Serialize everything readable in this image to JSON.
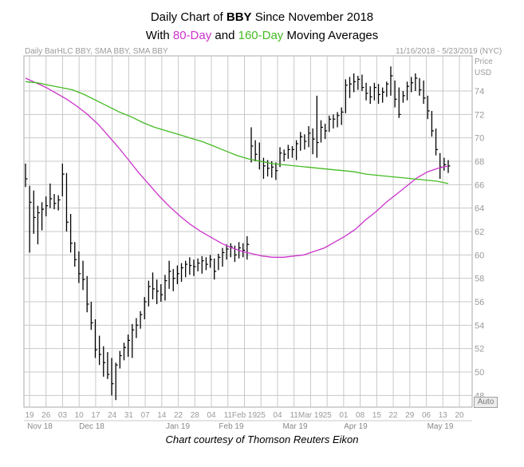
{
  "title": {
    "line1_prefix": "Daily Chart of ",
    "ticker": "BBY",
    "line1_suffix": " Since November 2018",
    "line2_prefix": "With ",
    "ma80_label": "80-Day",
    "line2_middle": " and ",
    "ma160_label": "160-Day",
    "line2_suffix": " Moving Averages"
  },
  "header_left": "Daily BarHLC BBY, SMA BBY, SMA BBY",
  "header_right": "11/16/2018 - 5/23/2019 (NYC)",
  "price_label": "Price",
  "currency_label": "USD",
  "auto_label": "Auto",
  "credit": "Chart courtesy of Thomson Reuters Eikon",
  "colors": {
    "bars": "#000000",
    "sma80": "#cc33cc",
    "sma160": "#44bb22",
    "grid": "#c8c8c8",
    "axis_text": "#9a9a9a"
  },
  "chart_data": {
    "type": "bar",
    "subtype": "HLC",
    "ylim": [
      47,
      77
    ],
    "y_ticks": [
      48,
      50,
      52,
      54,
      56,
      58,
      60,
      62,
      64,
      66,
      68,
      70,
      72,
      74
    ],
    "x_day_labels": [
      "19",
      "26",
      "03",
      "10",
      "17",
      "24",
      "31",
      "07",
      "14",
      "22",
      "28",
      "04",
      "11",
      "Feb 19",
      "25",
      "04",
      "11",
      "Mar 19",
      "25",
      "01",
      "08",
      "15",
      "22",
      "29",
      "06",
      "13",
      "20"
    ],
    "x_month_labels": [
      "Nov 18",
      "Dec 18",
      "Jan 19",
      "Feb 19",
      "Mar 19",
      "Apr 19",
      "May 19"
    ],
    "grid": true,
    "bars": [
      {
        "h": 67.8,
        "l": 65.8,
        "c": 66.5
      },
      {
        "h": 65.9,
        "l": 60.2,
        "c": 64.5
      },
      {
        "h": 65.5,
        "l": 61.8,
        "c": 63.2
      },
      {
        "h": 64.2,
        "l": 60.9,
        "c": 63.6
      },
      {
        "h": 64.5,
        "l": 62.1,
        "c": 63.9
      },
      {
        "h": 65.0,
        "l": 63.3,
        "c": 64.2
      },
      {
        "h": 66.1,
        "l": 64.0,
        "c": 64.8
      },
      {
        "h": 65.2,
        "l": 63.9,
        "c": 64.4
      },
      {
        "h": 65.1,
        "l": 63.8,
        "c": 64.7
      },
      {
        "h": 67.8,
        "l": 65.0,
        "c": 66.9
      },
      {
        "h": 67.0,
        "l": 62.0,
        "c": 62.8
      },
      {
        "h": 63.5,
        "l": 60.2,
        "c": 61.0
      },
      {
        "h": 61.1,
        "l": 59.0,
        "c": 59.6
      },
      {
        "h": 60.3,
        "l": 57.6,
        "c": 58.4
      },
      {
        "h": 59.5,
        "l": 57.0,
        "c": 57.9
      },
      {
        "h": 58.2,
        "l": 55.1,
        "c": 55.8
      },
      {
        "h": 56.0,
        "l": 53.6,
        "c": 54.2
      },
      {
        "h": 54.5,
        "l": 51.2,
        "c": 51.9
      },
      {
        "h": 53.1,
        "l": 50.6,
        "c": 51.5
      },
      {
        "h": 52.2,
        "l": 49.6,
        "c": 50.8
      },
      {
        "h": 51.7,
        "l": 49.4,
        "c": 49.8
      },
      {
        "h": 51.2,
        "l": 48.0,
        "c": 49.0
      },
      {
        "h": 50.8,
        "l": 47.6,
        "c": 50.6
      },
      {
        "h": 51.8,
        "l": 50.3,
        "c": 51.4
      },
      {
        "h": 52.5,
        "l": 51.0,
        "c": 52.1
      },
      {
        "h": 53.2,
        "l": 51.3,
        "c": 52.7
      },
      {
        "h": 54.1,
        "l": 51.2,
        "c": 53.6
      },
      {
        "h": 54.6,
        "l": 52.9,
        "c": 54.0
      },
      {
        "h": 55.2,
        "l": 53.7,
        "c": 54.9
      },
      {
        "h": 56.4,
        "l": 54.5,
        "c": 56.0
      },
      {
        "h": 57.8,
        "l": 55.6,
        "c": 57.3
      },
      {
        "h": 58.5,
        "l": 56.2,
        "c": 57.1
      },
      {
        "h": 57.9,
        "l": 55.8,
        "c": 56.9
      },
      {
        "h": 57.5,
        "l": 56.0,
        "c": 56.6
      },
      {
        "h": 58.3,
        "l": 56.1,
        "c": 57.8
      },
      {
        "h": 59.5,
        "l": 57.1,
        "c": 58.6
      },
      {
        "h": 58.8,
        "l": 56.9,
        "c": 58.0
      },
      {
        "h": 59.1,
        "l": 57.5,
        "c": 58.4
      },
      {
        "h": 59.3,
        "l": 57.7,
        "c": 58.9
      },
      {
        "h": 59.5,
        "l": 58.1,
        "c": 59.2
      },
      {
        "h": 59.8,
        "l": 58.3,
        "c": 59.1
      },
      {
        "h": 59.6,
        "l": 58.2,
        "c": 59.0
      },
      {
        "h": 59.7,
        "l": 58.6,
        "c": 59.3
      },
      {
        "h": 59.9,
        "l": 58.4,
        "c": 59.5
      },
      {
        "h": 59.8,
        "l": 58.7,
        "c": 59.2
      },
      {
        "h": 60.0,
        "l": 58.9,
        "c": 59.6
      },
      {
        "h": 59.7,
        "l": 57.9,
        "c": 58.6
      },
      {
        "h": 60.1,
        "l": 58.7,
        "c": 59.8
      },
      {
        "h": 60.6,
        "l": 59.0,
        "c": 60.2
      },
      {
        "h": 60.9,
        "l": 59.6,
        "c": 60.5
      },
      {
        "h": 61.0,
        "l": 59.8,
        "c": 60.7
      },
      {
        "h": 60.8,
        "l": 59.4,
        "c": 60.0
      },
      {
        "h": 61.1,
        "l": 59.7,
        "c": 60.6
      },
      {
        "h": 61.0,
        "l": 59.8,
        "c": 60.4
      },
      {
        "h": 61.6,
        "l": 59.6,
        "c": 60.9
      },
      {
        "h": 70.9,
        "l": 67.9,
        "c": 69.3
      },
      {
        "h": 69.8,
        "l": 68.0,
        "c": 68.6
      },
      {
        "h": 69.6,
        "l": 67.3,
        "c": 68.0
      },
      {
        "h": 68.3,
        "l": 66.5,
        "c": 67.6
      },
      {
        "h": 68.1,
        "l": 66.7,
        "c": 67.4
      },
      {
        "h": 68.0,
        "l": 66.6,
        "c": 67.5
      },
      {
        "h": 67.9,
        "l": 66.4,
        "c": 67.2
      },
      {
        "h": 69.2,
        "l": 67.5,
        "c": 68.7
      },
      {
        "h": 69.0,
        "l": 68.0,
        "c": 68.6
      },
      {
        "h": 69.4,
        "l": 68.2,
        "c": 69.0
      },
      {
        "h": 69.3,
        "l": 68.3,
        "c": 69.0
      },
      {
        "h": 69.8,
        "l": 68.1,
        "c": 69.5
      },
      {
        "h": 70.5,
        "l": 68.9,
        "c": 70.1
      },
      {
        "h": 70.3,
        "l": 69.0,
        "c": 69.7
      },
      {
        "h": 71.0,
        "l": 69.2,
        "c": 70.4
      },
      {
        "h": 70.8,
        "l": 68.6,
        "c": 69.9
      },
      {
        "h": 73.6,
        "l": 68.3,
        "c": 69.6
      },
      {
        "h": 71.5,
        "l": 69.6,
        "c": 70.9
      },
      {
        "h": 71.2,
        "l": 69.9,
        "c": 70.6
      },
      {
        "h": 71.9,
        "l": 70.5,
        "c": 71.6
      },
      {
        "h": 72.0,
        "l": 70.8,
        "c": 71.6
      },
      {
        "h": 72.2,
        "l": 70.9,
        "c": 71.9
      },
      {
        "h": 72.6,
        "l": 71.1,
        "c": 72.2
      },
      {
        "h": 75.0,
        "l": 72.1,
        "c": 74.5
      },
      {
        "h": 75.2,
        "l": 73.4,
        "c": 74.6
      },
      {
        "h": 75.5,
        "l": 73.9,
        "c": 74.8
      },
      {
        "h": 75.3,
        "l": 74.1,
        "c": 75.0
      },
      {
        "h": 75.4,
        "l": 74.0,
        "c": 74.3
      },
      {
        "h": 74.7,
        "l": 73.2,
        "c": 73.8
      },
      {
        "h": 74.4,
        "l": 72.9,
        "c": 73.5
      },
      {
        "h": 74.7,
        "l": 73.2,
        "c": 74.3
      },
      {
        "h": 74.6,
        "l": 72.9,
        "c": 73.7
      },
      {
        "h": 74.3,
        "l": 73.0,
        "c": 73.9
      },
      {
        "h": 74.8,
        "l": 73.5,
        "c": 74.6
      },
      {
        "h": 76.1,
        "l": 73.6,
        "c": 75.3
      },
      {
        "h": 74.9,
        "l": 72.6,
        "c": 73.3
      },
      {
        "h": 74.3,
        "l": 71.7,
        "c": 72.0
      },
      {
        "h": 74.0,
        "l": 73.0,
        "c": 73.6
      },
      {
        "h": 74.8,
        "l": 73.2,
        "c": 74.4
      },
      {
        "h": 75.2,
        "l": 73.9,
        "c": 74.7
      },
      {
        "h": 75.5,
        "l": 74.0,
        "c": 75.1
      },
      {
        "h": 75.1,
        "l": 73.6,
        "c": 74.1
      },
      {
        "h": 74.9,
        "l": 72.9,
        "c": 73.4
      },
      {
        "h": 73.6,
        "l": 71.6,
        "c": 72.3
      },
      {
        "h": 72.3,
        "l": 70.1,
        "c": 70.6
      },
      {
        "h": 70.8,
        "l": 68.5,
        "c": 69.0
      },
      {
        "h": 68.7,
        "l": 66.5,
        "c": 67.5
      },
      {
        "h": 68.3,
        "l": 67.2,
        "c": 67.7
      },
      {
        "h": 68.1,
        "l": 67.0,
        "c": 67.6
      }
    ],
    "series": [
      {
        "name": "80-Day",
        "type": "line",
        "values": [
          75.1,
          74.7,
          74.3,
          73.8,
          73.3,
          72.7,
          72.0,
          71.2,
          70.2,
          69.2,
          68.1,
          67.0,
          66.0,
          65.0,
          64.1,
          63.3,
          62.6,
          62.0,
          61.5,
          61.0,
          60.6,
          60.3,
          60.1,
          59.9,
          59.8,
          59.8,
          59.9,
          60.0,
          60.3,
          60.6,
          61.1,
          61.6,
          62.2,
          63.0,
          63.7,
          64.5,
          65.2,
          65.9,
          66.6,
          67.1,
          67.4,
          67.6
        ]
      },
      {
        "name": "160-Day",
        "type": "line",
        "values": [
          74.8,
          74.7,
          74.5,
          74.3,
          74.1,
          73.7,
          73.2,
          72.7,
          72.2,
          71.8,
          71.3,
          70.9,
          70.6,
          70.3,
          70.0,
          69.7,
          69.3,
          68.9,
          68.5,
          68.2,
          68.0,
          67.8,
          67.7,
          67.6,
          67.5,
          67.4,
          67.3,
          67.2,
          67.1,
          66.9,
          66.8,
          66.7,
          66.6,
          66.5,
          66.4,
          66.3,
          66.1
        ]
      }
    ]
  }
}
